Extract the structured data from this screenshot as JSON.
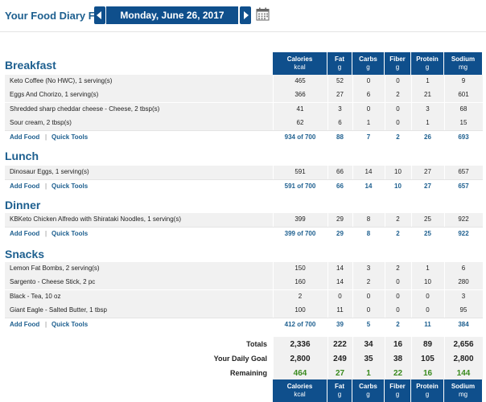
{
  "header": {
    "diary_label": "Your Food Diary For:",
    "date": "Monday, June 26, 2017"
  },
  "columns": [
    {
      "name": "Calories",
      "unit": "kcal"
    },
    {
      "name": "Fat",
      "unit": "g"
    },
    {
      "name": "Carbs",
      "unit": "g"
    },
    {
      "name": "Fiber",
      "unit": "g"
    },
    {
      "name": "Protein",
      "unit": "g"
    },
    {
      "name": "Sodium",
      "unit": "mg"
    }
  ],
  "links": {
    "add_food": "Add Food",
    "quick_tools": "Quick Tools",
    "separator": "|"
  },
  "meals": [
    {
      "title": "Breakfast",
      "items": [
        {
          "name": "Keto Coffee (No HWC), 1 serving(s)",
          "values": [
            "465",
            "52",
            "0",
            "0",
            "1",
            "9"
          ]
        },
        {
          "name": "Eggs And Chorizo, 1 serving(s)",
          "values": [
            "366",
            "27",
            "6",
            "2",
            "21",
            "601"
          ]
        },
        {
          "name": "Shredded sharp cheddar cheese - Cheese, 2 tbsp(s)",
          "values": [
            "41",
            "3",
            "0",
            "0",
            "3",
            "68"
          ]
        },
        {
          "name": "Sour cream, 2 tbsp(s)",
          "values": [
            "62",
            "6",
            "1",
            "0",
            "1",
            "15"
          ]
        }
      ],
      "summary": [
        "934 of 700",
        "88",
        "7",
        "2",
        "26",
        "693"
      ]
    },
    {
      "title": "Lunch",
      "items": [
        {
          "name": "Dinosaur Eggs, 1 serving(s)",
          "values": [
            "591",
            "66",
            "14",
            "10",
            "27",
            "657"
          ]
        }
      ],
      "summary": [
        "591 of 700",
        "66",
        "14",
        "10",
        "27",
        "657"
      ]
    },
    {
      "title": "Dinner",
      "items": [
        {
          "name": "KBKeto Chicken Alfredo with Shirataki Noodles, 1 serving(s)",
          "values": [
            "399",
            "29",
            "8",
            "2",
            "25",
            "922"
          ]
        }
      ],
      "summary": [
        "399 of 700",
        "29",
        "8",
        "2",
        "25",
        "922"
      ]
    },
    {
      "title": "Snacks",
      "items": [
        {
          "name": "Lemon Fat Bombs, 2 serving(s)",
          "values": [
            "150",
            "14",
            "3",
            "2",
            "1",
            "6"
          ]
        },
        {
          "name": "Sargento - Cheese Stick, 2 pc",
          "values": [
            "160",
            "14",
            "2",
            "0",
            "10",
            "280"
          ]
        },
        {
          "name": "Black - Tea, 10 oz",
          "values": [
            "2",
            "0",
            "0",
            "0",
            "0",
            "3"
          ]
        },
        {
          "name": "Giant Eagle - Salted Butter, 1 tbsp",
          "values": [
            "100",
            "11",
            "0",
            "0",
            "0",
            "95"
          ]
        }
      ],
      "summary": [
        "412 of 700",
        "39",
        "5",
        "2",
        "11",
        "384"
      ]
    }
  ],
  "totals": {
    "totals_label": "Totals",
    "totals": [
      "2,336",
      "222",
      "34",
      "16",
      "89",
      "2,656"
    ],
    "goal_label": "Your Daily Goal",
    "goal": [
      "2,800",
      "249",
      "35",
      "38",
      "105",
      "2,800"
    ],
    "remaining_label": "Remaining",
    "remaining": [
      "464",
      "27",
      "1",
      "22",
      "16",
      "144"
    ]
  },
  "colors": {
    "accent": "#0f4f8c",
    "title": "#1d5f8f",
    "remaining": "#3a8a1e"
  },
  "icons": {
    "prev": "chevron-left-icon",
    "next": "chevron-right-icon",
    "calendar": "calendar-icon"
  }
}
